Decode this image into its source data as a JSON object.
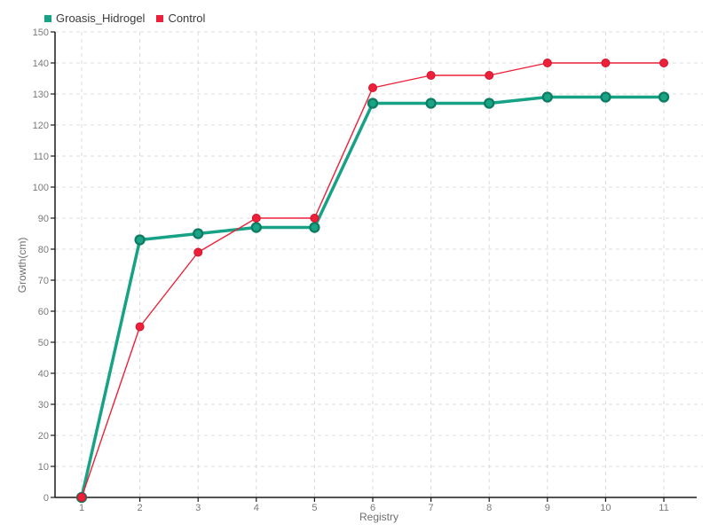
{
  "chart_data": {
    "type": "line",
    "title": "",
    "xlabel": "Registry",
    "ylabel": "Growth(cm)",
    "x": [
      1,
      2,
      3,
      4,
      5,
      6,
      7,
      8,
      9,
      10,
      11
    ],
    "xticks": [
      1,
      2,
      3,
      4,
      5,
      6,
      7,
      8,
      9,
      10,
      11
    ],
    "yticks": [
      0,
      10,
      20,
      30,
      40,
      50,
      60,
      70,
      80,
      90,
      100,
      110,
      120,
      130,
      140,
      150
    ],
    "ylim": [
      0,
      150
    ],
    "grid": true,
    "grid_style": "dashed",
    "legend_position": "top-left",
    "series": [
      {
        "name": "Groasis_Hidrogel",
        "values": [
          0,
          83,
          85,
          87,
          87,
          127,
          127,
          127,
          129,
          129,
          129
        ],
        "color": "#17a286",
        "marker_fill": "#1aa385",
        "marker_stroke": "#0c7c62",
        "line_width": 3.5,
        "marker_radius": 5
      },
      {
        "name": "Control",
        "values": [
          0,
          55,
          79,
          90,
          90,
          132,
          136,
          136,
          140,
          140,
          140
        ],
        "color": "#ec2038",
        "marker_fill": "#ec2038",
        "marker_stroke": "#d2142e",
        "line_width": 1.4,
        "marker_radius": 4.5
      }
    ],
    "colors": {
      "background": "#ffffff",
      "grid": "#dcdcdc",
      "axis": "#1a1a1a",
      "tick_label": "#7a7a7a",
      "axis_title": "#6e6e6e",
      "legend_text": "#3a3a3a"
    }
  }
}
